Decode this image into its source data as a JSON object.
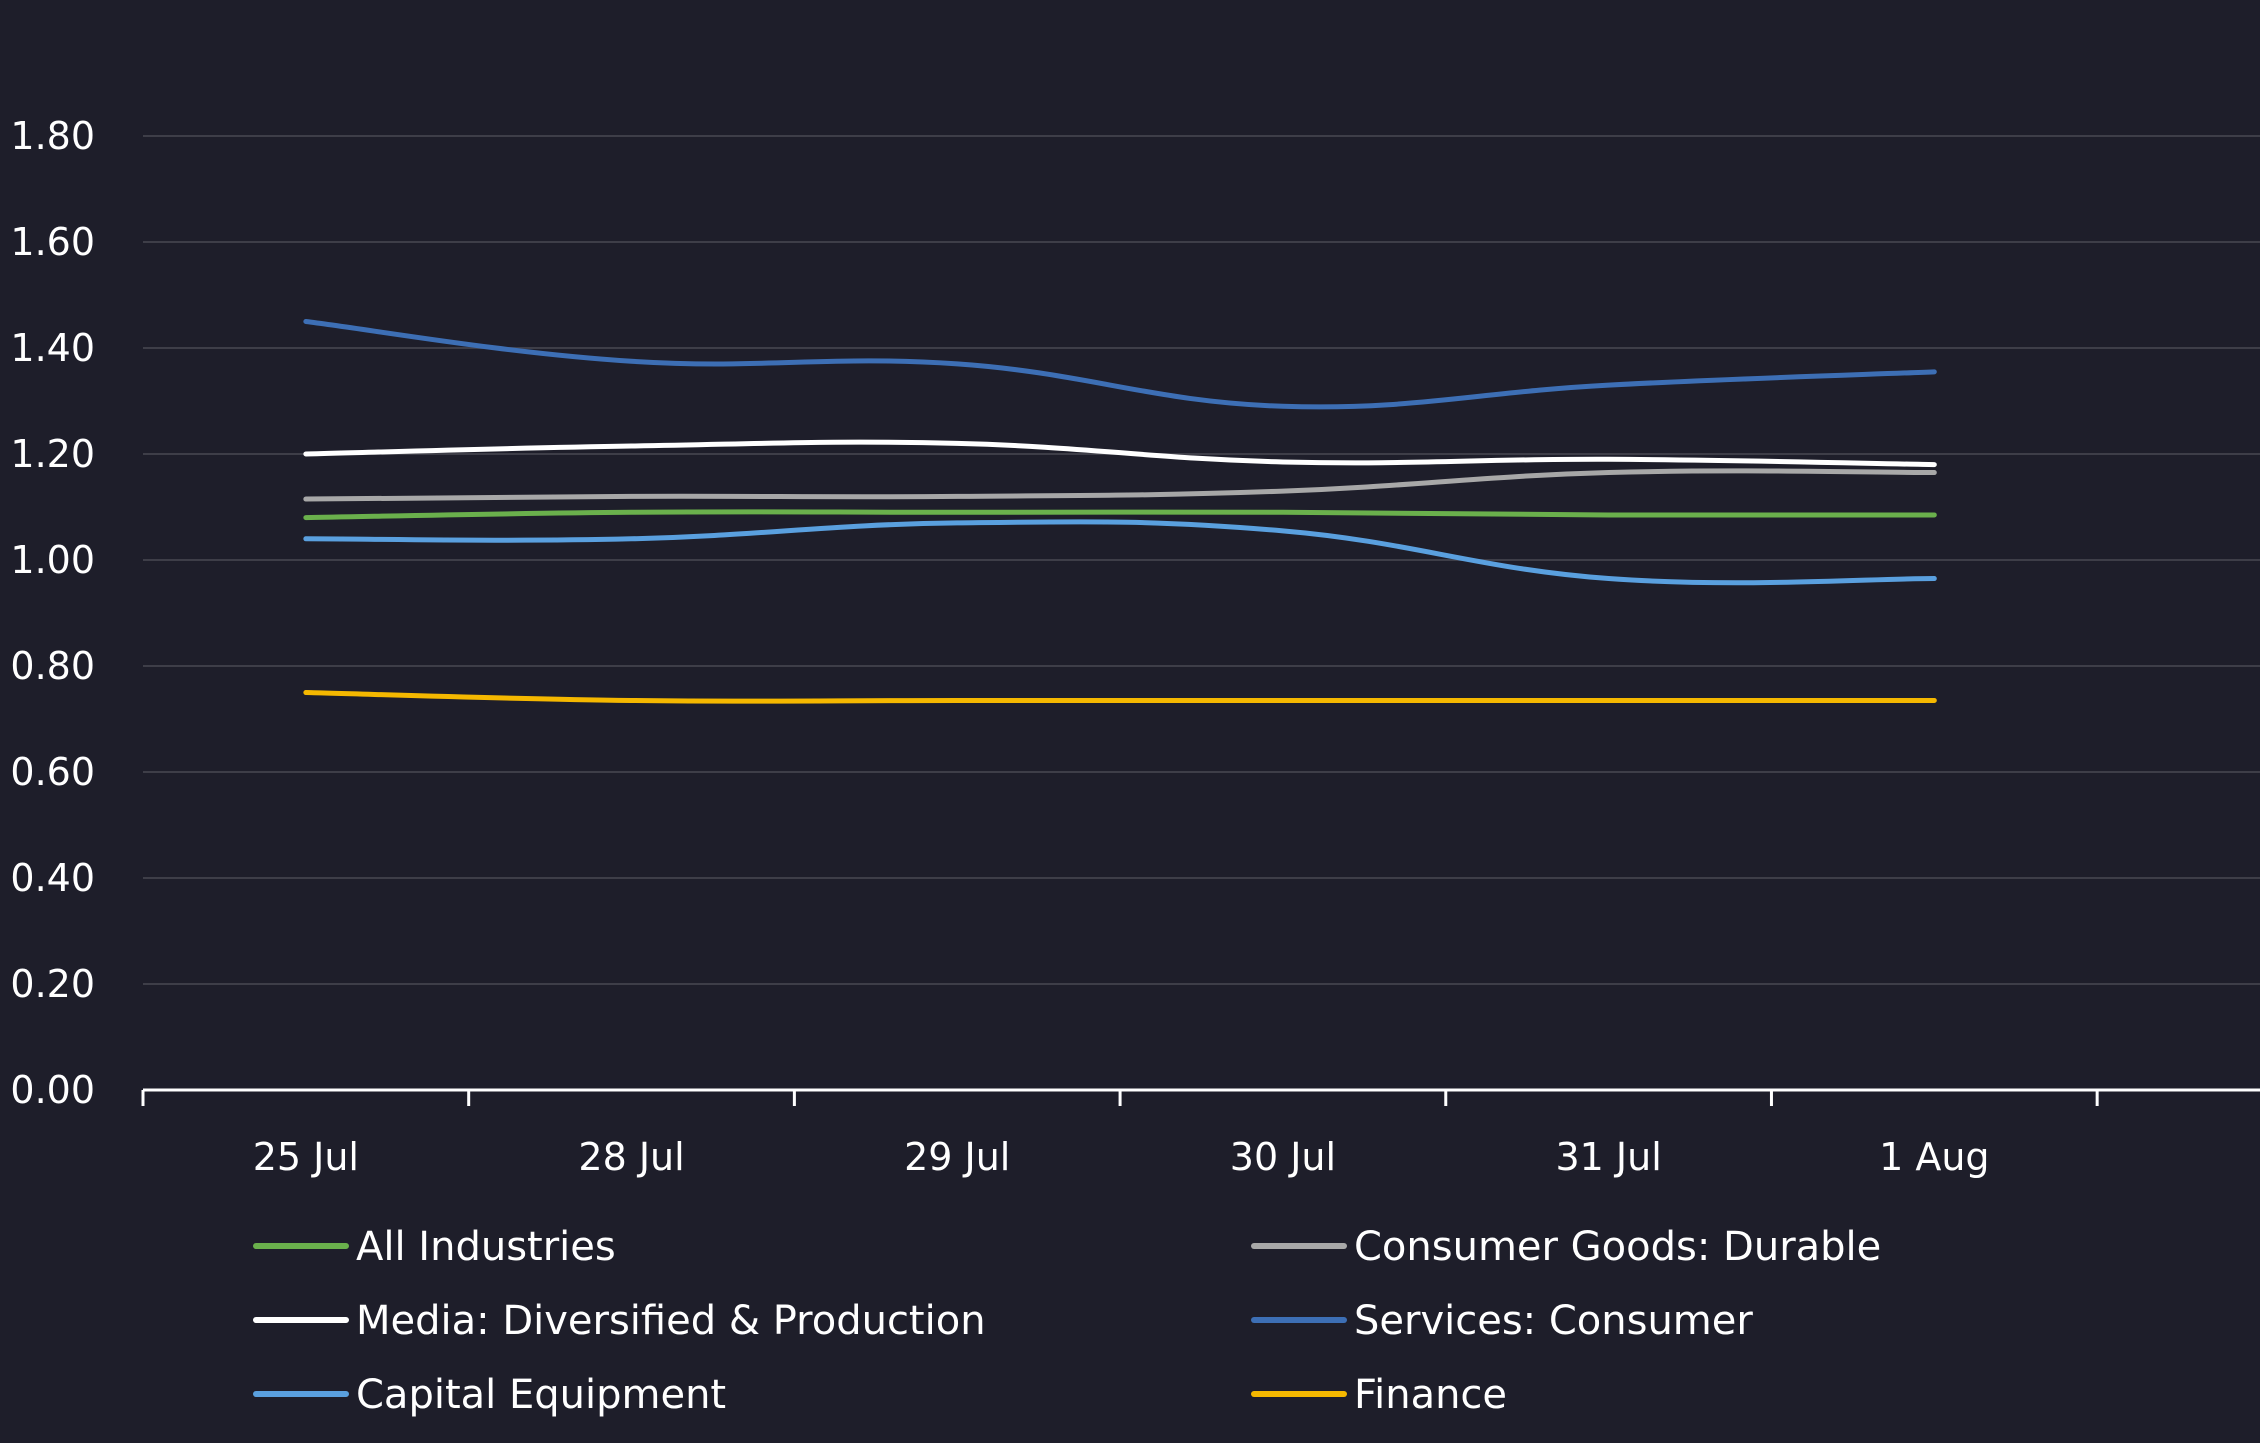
{
  "chart_data": {
    "type": "line",
    "title": "",
    "xlabel": "",
    "ylabel": "",
    "categories": [
      "25 Jul",
      "28 Jul",
      "29 Jul",
      "30 Jul",
      "31 Jul",
      "1 Aug"
    ],
    "ylim": [
      0,
      1.8
    ],
    "yticks": [
      "0.00",
      "0.20",
      "0.40",
      "0.60",
      "0.80",
      "1.00",
      "1.20",
      "1.40",
      "1.60",
      "1.80"
    ],
    "grid": true,
    "legend_position": "bottom",
    "series": [
      {
        "name": "All Industries",
        "color": "#6ab04c",
        "values": [
          1.08,
          1.09,
          1.09,
          1.09,
          1.085,
          1.085
        ]
      },
      {
        "name": "Consumer Goods: Durable",
        "color": "#a8a8a8",
        "values": [
          1.115,
          1.12,
          1.12,
          1.13,
          1.165,
          1.165
        ]
      },
      {
        "name": "Media: Diversified & Production",
        "color": "#ffffff",
        "values": [
          1.2,
          1.215,
          1.22,
          1.185,
          1.19,
          1.18
        ]
      },
      {
        "name": "Services: Consumer",
        "color": "#3d6fb5",
        "values": [
          1.45,
          1.375,
          1.37,
          1.29,
          1.33,
          1.355
        ]
      },
      {
        "name": "Capital Equipment",
        "color": "#5aa0df",
        "values": [
          1.04,
          1.04,
          1.07,
          1.055,
          0.965,
          0.965
        ]
      },
      {
        "name": "Finance",
        "color": "#f5b800",
        "values": [
          0.75,
          0.735,
          0.735,
          0.735,
          0.735,
          0.735
        ]
      }
    ]
  }
}
